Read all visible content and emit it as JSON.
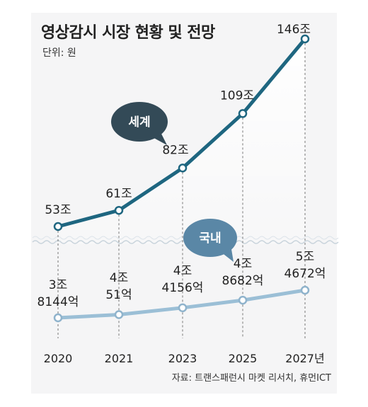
{
  "chart_data": {
    "type": "line",
    "title": "영상감시 시장 현황 및 전망",
    "unit_label": "단위: 원",
    "source": "자료: 트랜스패런시 마켓 리서치, 휴먼ICT",
    "categories": [
      "2020",
      "2021",
      "2023",
      "2025",
      "2027년"
    ],
    "series": [
      {
        "name": "세계",
        "values": [
          53,
          61,
          82,
          109,
          146
        ],
        "labels": [
          "53조",
          "61조",
          "82조",
          "109조",
          "146조"
        ],
        "color": "#1e6680"
      },
      {
        "name": "국내",
        "values": [
          3.8144,
          4.0051,
          4.4156,
          4.8682,
          5.4672
        ],
        "labels": [
          [
            "3조",
            "8144억"
          ],
          [
            "4조",
            "51억"
          ],
          [
            "4조",
            "4156억"
          ],
          [
            "4조",
            "8682억"
          ],
          [
            "5조",
            "4672억"
          ]
        ],
        "color": "#9bbfd6"
      }
    ],
    "bubble_colors": {
      "세계": "#334a57",
      "국내": "#5a87a6"
    }
  }
}
